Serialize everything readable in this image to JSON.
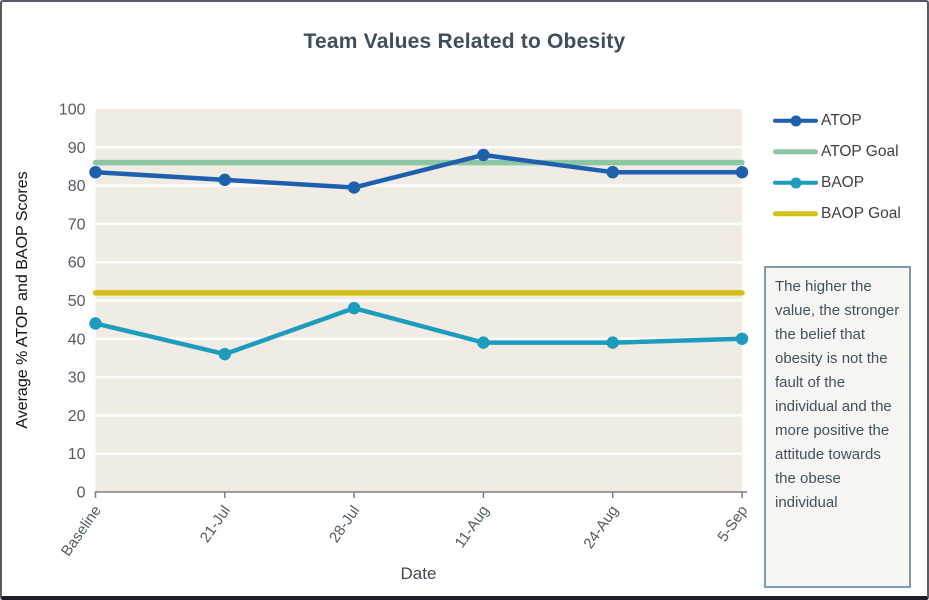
{
  "chart_data": {
    "type": "line",
    "title": "Team Values Related to Obesity",
    "xlabel": "Date",
    "ylabel": "Average % ATOP and BAOP Scores",
    "ylim": [
      0,
      100
    ],
    "ytick_step": 10,
    "grid": true,
    "legend_position": "right",
    "categories": [
      "Baseline",
      "21-Jul",
      "28-Jul",
      "11-Aug",
      "24-Aug",
      "5-Sep"
    ],
    "series": [
      {
        "name": "ATOP",
        "color": "#1e5fae",
        "marker": true,
        "values": [
          83.5,
          81.5,
          79.5,
          88,
          83.5,
          83.5
        ]
      },
      {
        "name": "ATOP Goal",
        "color": "#8dc6a3",
        "marker": false,
        "values": [
          86,
          86,
          86,
          86,
          86,
          86
        ]
      },
      {
        "name": "BAOP",
        "color": "#1e9cbe",
        "marker": true,
        "values": [
          44,
          36,
          48,
          39,
          39,
          40
        ]
      },
      {
        "name": "BAOP Goal",
        "color": "#d3c116",
        "marker": false,
        "values": [
          52,
          52,
          52,
          52,
          52,
          52
        ]
      }
    ],
    "colors": {
      "plot_bg": "#f0ebe3",
      "gridline": "#ffffff",
      "axis": "#7f7f7f",
      "tick_label": "#4e5b69"
    }
  },
  "annotation": {
    "text": "The higher the value, the stronger the belief that obesity is not the fault of the individual and the more positive the attitude towards the obese individual"
  }
}
